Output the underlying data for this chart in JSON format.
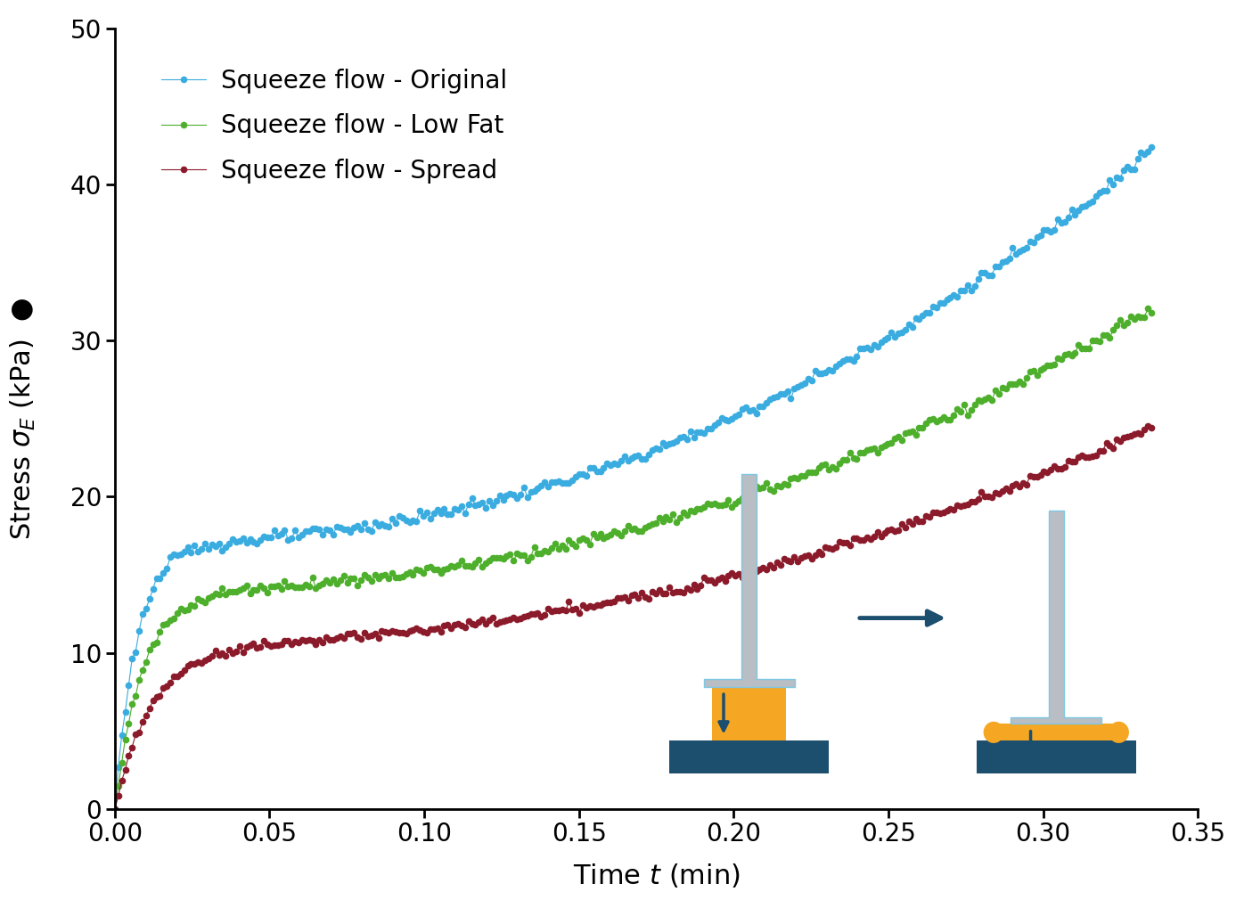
{
  "xlabel": "Time $t$ (min)",
  "ylabel": "Stress $\\sigma_E$ (kPa)",
  "xlim": [
    0,
    0.35
  ],
  "ylim": [
    0,
    50
  ],
  "xticks": [
    0.0,
    0.05,
    0.1,
    0.15,
    0.2,
    0.25,
    0.3,
    0.35
  ],
  "yticks": [
    0,
    10,
    20,
    30,
    40,
    50
  ],
  "series": [
    {
      "label": "Squeeze flow - Original",
      "color": "#3AACE0",
      "marker": "o",
      "markersize": 5.5,
      "linewidth": 0.8
    },
    {
      "label": "Squeeze flow - Low Fat",
      "color": "#4DAF2B",
      "marker": "o",
      "markersize": 5.5,
      "linewidth": 0.8
    },
    {
      "label": "Squeeze flow - Spread",
      "color": "#8B1A2A",
      "marker": "o",
      "markersize": 5.5,
      "linewidth": 0.8
    }
  ],
  "dark_blue": "#1C4E6E",
  "gray_stem": "#B8BEC4",
  "light_blue_outline": "#7EC8E3",
  "orange_sample": "#F5A623",
  "base_color": "#1C4E6E",
  "figsize": [
    13.96,
    10.19
  ],
  "dpi": 100
}
